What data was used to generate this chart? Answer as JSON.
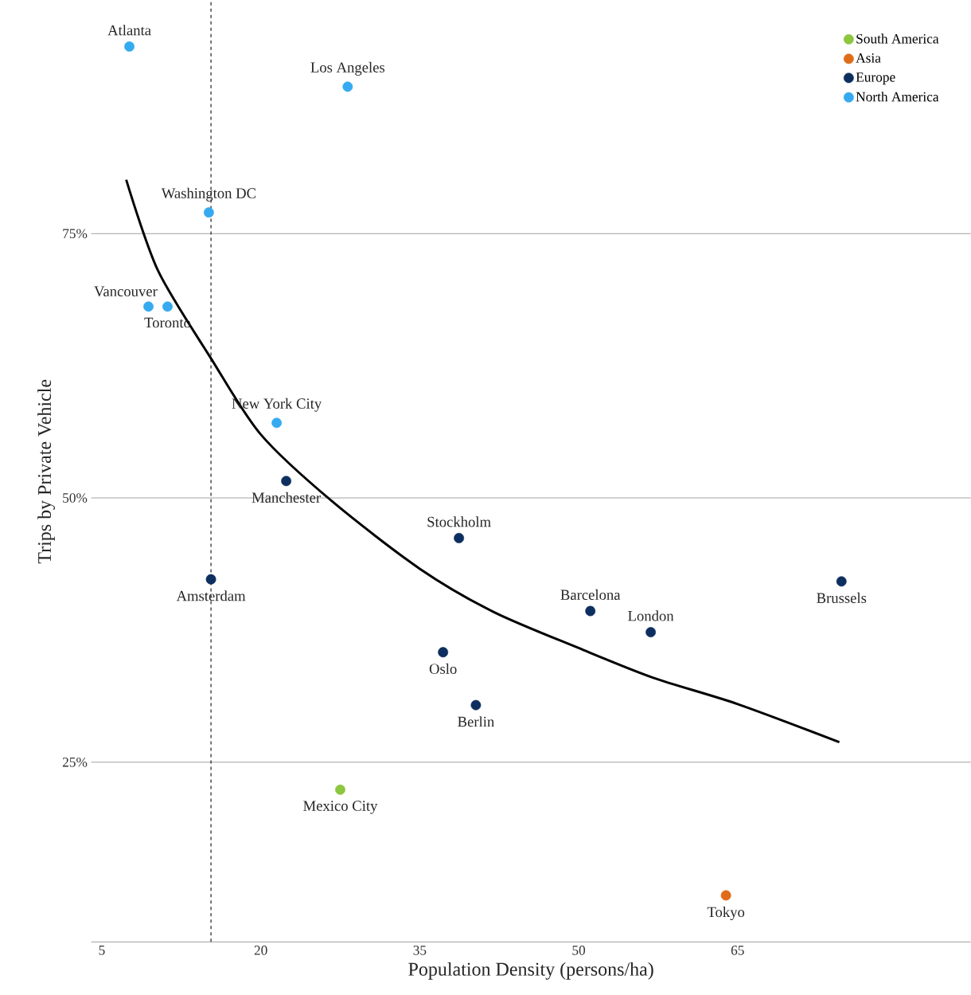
{
  "chart_data": {
    "type": "scatter",
    "xlabel": "Population Density (persons/ha)",
    "ylabel": "Trips by Private Vehicle",
    "xlim": [
      4,
      87
    ],
    "ylim": [
      8,
      97
    ],
    "xticks": [
      5,
      20,
      35,
      50,
      65
    ],
    "yticks": [
      {
        "value": 25,
        "label": "25%"
      },
      {
        "value": 50,
        "label": "50%"
      },
      {
        "value": 75,
        "label": "75%"
      }
    ],
    "grid": "y",
    "legend": "top right",
    "series": [
      {
        "name": "South America",
        "color": "#8dc63f",
        "marker": "circle",
        "x": [
          27.5
        ],
        "values": [
          22.4
        ]
      },
      {
        "name": "Asia",
        "color": "#e06c1a",
        "marker": "circle",
        "x": [
          63.9
        ],
        "values": [
          12.4
        ]
      },
      {
        "name": "Europe",
        "color": "#0d2f5f",
        "marker": "circle",
        "x": [
          22.4,
          15.3,
          38.7,
          51.1,
          56.8,
          74.8,
          37.2,
          40.3
        ],
        "values": [
          51.6,
          42.3,
          46.2,
          39.3,
          37.3,
          42.1,
          35.4,
          30.4
        ]
      },
      {
        "name": "North America",
        "color": "#35aaf0",
        "marker": "circle",
        "x": [
          7.6,
          28.2,
          15.1,
          9.4,
          11.2,
          21.5
        ],
        "values": [
          92.7,
          88.9,
          77.0,
          68.1,
          68.1,
          57.1
        ]
      },
      {
        "type": "line",
        "color": "#000000",
        "marker": "none",
        "x": [
          7.3,
          10.3,
          15.3,
          20,
          26.7,
          35,
          42,
          50,
          57,
          65,
          74.6
        ],
        "values": [
          80.1,
          71.5,
          63.2,
          56,
          49.7,
          43.3,
          39.2,
          35.8,
          33,
          30.5,
          26.9
        ]
      }
    ],
    "ref_lines": [
      {
        "axis": "x",
        "value": 15.3,
        "color": "#000000",
        "line_style": "dashed"
      }
    ],
    "annotations": [
      {
        "text": "Atlanta",
        "x": 7.6,
        "y": 92.7
      },
      {
        "text": "Los Angeles",
        "x": 28.2,
        "y": 88.9
      },
      {
        "text": "Washington DC",
        "x": 15.1,
        "y": 77.0
      },
      {
        "text": "Vancouver",
        "x": 9.4,
        "y": 68.1
      },
      {
        "text": "Toronto",
        "x": 11.2,
        "y": 68.1
      },
      {
        "text": "New York City",
        "x": 21.5,
        "y": 57.1
      },
      {
        "text": "Manchester",
        "x": 22.4,
        "y": 51.6
      },
      {
        "text": "Amsterdam",
        "x": 15.3,
        "y": 42.3
      },
      {
        "text": "Stockholm",
        "x": 38.7,
        "y": 46.2
      },
      {
        "text": "Barcelona",
        "x": 51.1,
        "y": 39.3
      },
      {
        "text": "London",
        "x": 56.8,
        "y": 37.3
      },
      {
        "text": "Brussels",
        "x": 74.8,
        "y": 42.1
      },
      {
        "text": "Oslo",
        "x": 37.2,
        "y": 35.4
      },
      {
        "text": "Berlin",
        "x": 40.3,
        "y": 30.4
      },
      {
        "text": "Mexico City",
        "x": 27.5,
        "y": 22.4
      },
      {
        "text": "Tokyo",
        "x": 63.9,
        "y": 12.4
      }
    ]
  }
}
